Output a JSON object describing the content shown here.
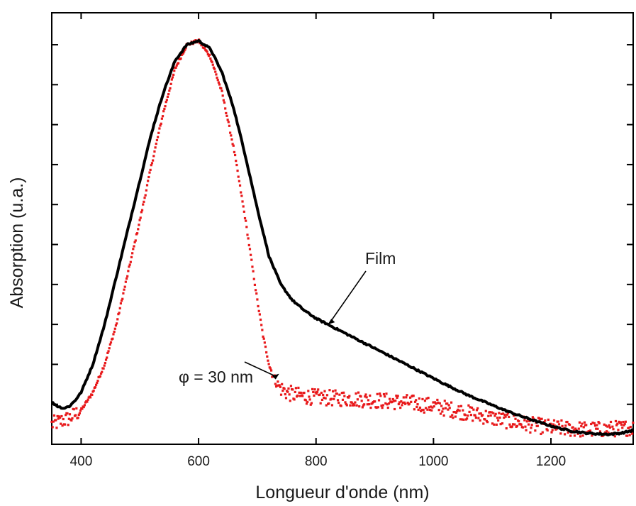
{
  "chart_data": {
    "type": "scatter",
    "xlabel": "Longueur d'onde (nm)",
    "ylabel": "Absorption (u.a.)",
    "xlim": [
      350,
      1340
    ],
    "ylim": [
      0,
      1.08
    ],
    "x_ticks": [
      400,
      600,
      800,
      1000,
      1200
    ],
    "x_tick_labels": [
      "400",
      "600",
      "800",
      "1000",
      "1200"
    ],
    "y_tick_values": [
      0.1,
      0.2,
      0.3,
      0.4,
      0.5,
      0.6,
      0.7,
      0.8,
      0.9,
      1.0
    ],
    "y_tick_labels_shown": false,
    "grid": false,
    "legend": "none",
    "series": [
      {
        "name": "Film",
        "color": "#000000",
        "style": "dense-markers-line",
        "x": [
          350,
          360,
          370,
          380,
          390,
          400,
          420,
          440,
          460,
          480,
          500,
          520,
          540,
          560,
          580,
          600,
          620,
          640,
          660,
          680,
          700,
          720,
          740,
          760,
          780,
          800,
          820,
          840,
          860,
          880,
          900,
          920,
          940,
          960,
          980,
          1000,
          1020,
          1040,
          1060,
          1080,
          1100,
          1120,
          1140,
          1160,
          1180,
          1200,
          1220,
          1240,
          1260,
          1280,
          1300,
          1320,
          1340
        ],
        "y": [
          0.105,
          0.095,
          0.09,
          0.095,
          0.11,
          0.13,
          0.2,
          0.3,
          0.42,
          0.54,
          0.66,
          0.78,
          0.88,
          0.96,
          1.0,
          1.01,
          0.99,
          0.93,
          0.84,
          0.72,
          0.59,
          0.47,
          0.4,
          0.36,
          0.335,
          0.315,
          0.3,
          0.285,
          0.27,
          0.255,
          0.24,
          0.225,
          0.21,
          0.195,
          0.18,
          0.165,
          0.15,
          0.136,
          0.122,
          0.11,
          0.098,
          0.086,
          0.075,
          0.065,
          0.055,
          0.046,
          0.038,
          0.032,
          0.028,
          0.026,
          0.025,
          0.028,
          0.035
        ]
      },
      {
        "name": "φ = 30 nm",
        "color": "#e8191b",
        "style": "scattered-points",
        "x": [
          350,
          360,
          370,
          380,
          390,
          400,
          420,
          440,
          460,
          480,
          500,
          520,
          540,
          560,
          580,
          600,
          620,
          640,
          660,
          680,
          700,
          710,
          720,
          730,
          740,
          750,
          760,
          780,
          800,
          820,
          840,
          860,
          880,
          900,
          920,
          940,
          960,
          980,
          1000,
          1020,
          1040,
          1060,
          1080,
          1100,
          1120,
          1140,
          1160,
          1180,
          1200,
          1220,
          1240,
          1260,
          1280,
          1300,
          1320,
          1340
        ],
        "y": [
          0.05,
          0.055,
          0.06,
          0.065,
          0.075,
          0.085,
          0.13,
          0.2,
          0.3,
          0.43,
          0.56,
          0.7,
          0.83,
          0.94,
          1.0,
          1.01,
          0.97,
          0.88,
          0.74,
          0.56,
          0.36,
          0.27,
          0.2,
          0.16,
          0.14,
          0.13,
          0.125,
          0.12,
          0.118,
          0.116,
          0.115,
          0.114,
          0.112,
          0.11,
          0.108,
          0.106,
          0.104,
          0.1,
          0.096,
          0.09,
          0.084,
          0.078,
          0.072,
          0.066,
          0.06,
          0.055,
          0.05,
          0.046,
          0.042,
          0.04,
          0.038,
          0.037,
          0.037,
          0.038,
          0.04,
          0.042
        ]
      }
    ],
    "annotations": [
      {
        "text": "Film",
        "target_series": "Film",
        "target_x": 820,
        "target_y": 0.3
      },
      {
        "text": "φ = 30 nm",
        "target_series": "φ = 30 nm",
        "target_x": 730,
        "target_y": 0.18
      }
    ]
  }
}
